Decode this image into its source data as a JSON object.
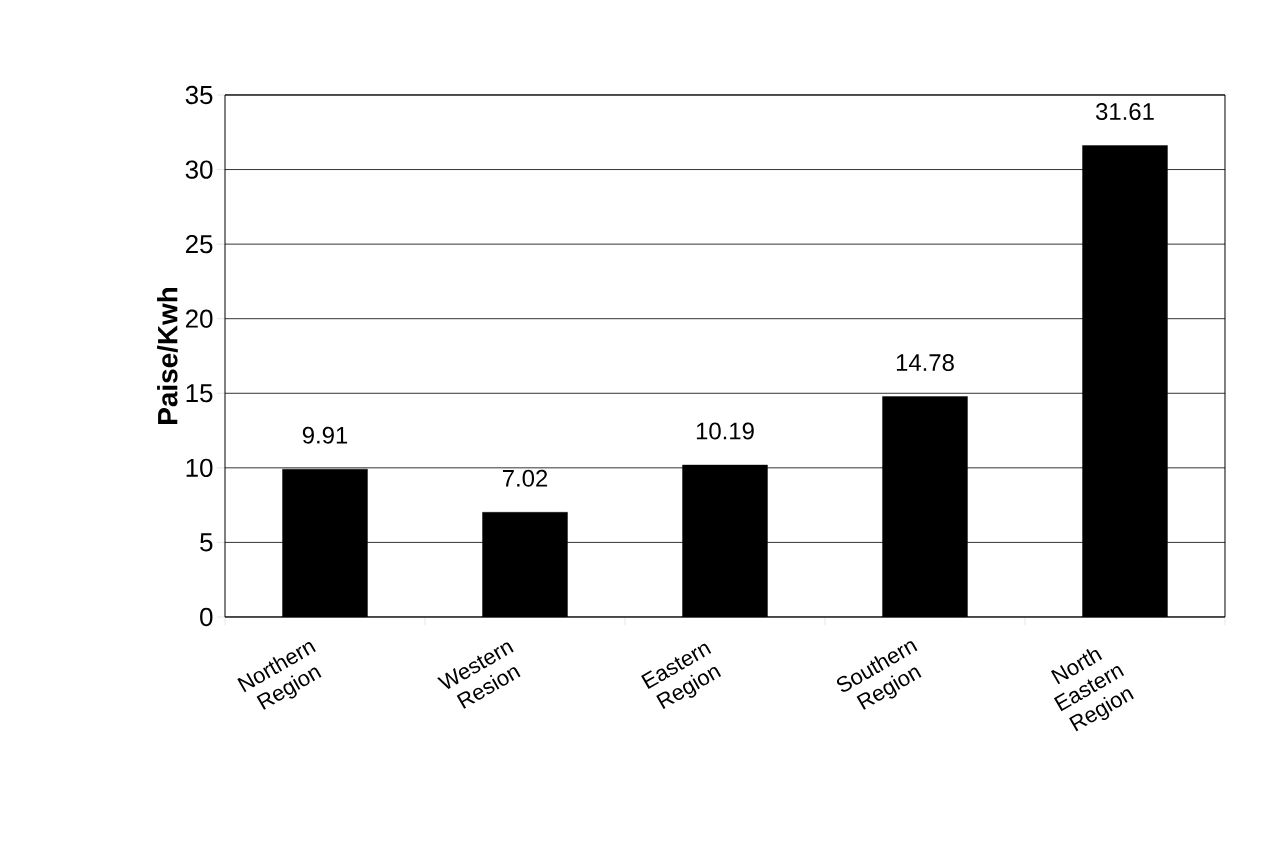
{
  "chart_data": {
    "type": "bar",
    "ylabel": "Paise/Kwh",
    "categories": [
      "Northern Region",
      "Western Resion",
      "Eastern Region",
      "Southern Region",
      "North Eastern Region"
    ],
    "values": [
      9.91,
      7.02,
      10.19,
      14.78,
      31.61
    ],
    "color": "#000000",
    "ylim": [
      0,
      35
    ],
    "yticks": [
      0,
      5,
      10,
      15,
      20,
      25,
      30,
      35
    ],
    "grid": "y",
    "data_labels": true
  }
}
